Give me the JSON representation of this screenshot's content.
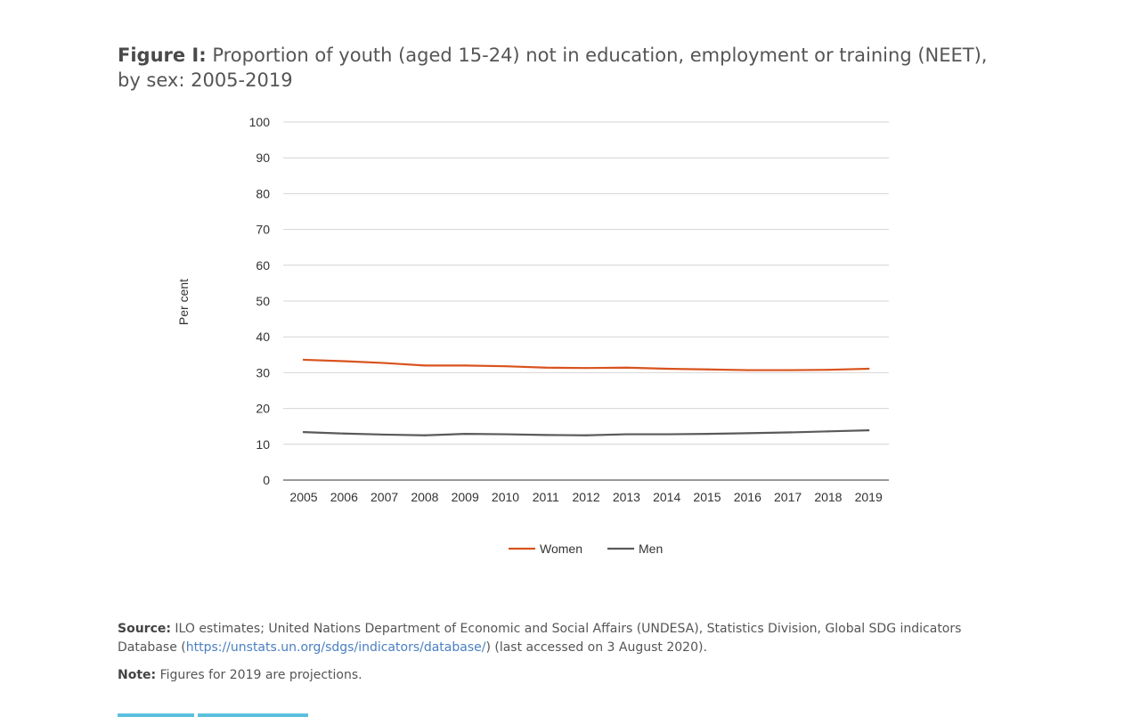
{
  "figure": {
    "lead": "Figure I:",
    "title": "Proportion of youth (aged 15-24) not in education, employment or training (NEET), by sex: 2005-2019"
  },
  "chart_data": {
    "type": "line",
    "title": "Proportion of youth (aged 15-24) not in education, employment or training (NEET), by sex: 2005-2019",
    "xlabel": "",
    "ylabel": "Per cent",
    "x": [
      2005,
      2006,
      2007,
      2008,
      2009,
      2010,
      2011,
      2012,
      2013,
      2014,
      2015,
      2016,
      2017,
      2018,
      2019
    ],
    "ylim": [
      0,
      100
    ],
    "yticks": [
      0,
      10,
      20,
      30,
      40,
      50,
      60,
      70,
      80,
      90,
      100
    ],
    "grid": true,
    "legend_position": "bottom",
    "series": [
      {
        "name": "Women",
        "color": "#d9531e",
        "values": [
          33.6,
          33.2,
          32.7,
          32.0,
          32.0,
          31.8,
          31.4,
          31.3,
          31.4,
          31.1,
          30.9,
          30.7,
          30.7,
          30.8,
          31.1
        ]
      },
      {
        "name": "Men",
        "color": "#5a5a5a",
        "values": [
          13.4,
          13.0,
          12.7,
          12.5,
          12.9,
          12.8,
          12.6,
          12.5,
          12.8,
          12.8,
          12.9,
          13.1,
          13.3,
          13.6,
          13.9
        ]
      }
    ]
  },
  "source": {
    "label": "Source:",
    "text_before": " ILO estimates; United Nations Department of Economic and Social Affairs (UNDESA), Statistics Division, Global SDG indicators Database (",
    "link": "https://unstats.un.org/sdgs/indicators/database/",
    "text_after": ") (last accessed on 3 August 2020)."
  },
  "note": {
    "label": "Note:",
    "text": " Figures for 2019 are projections."
  },
  "colors": {
    "accent_tab": "#5bc0de",
    "link": "#4a7fc1"
  }
}
